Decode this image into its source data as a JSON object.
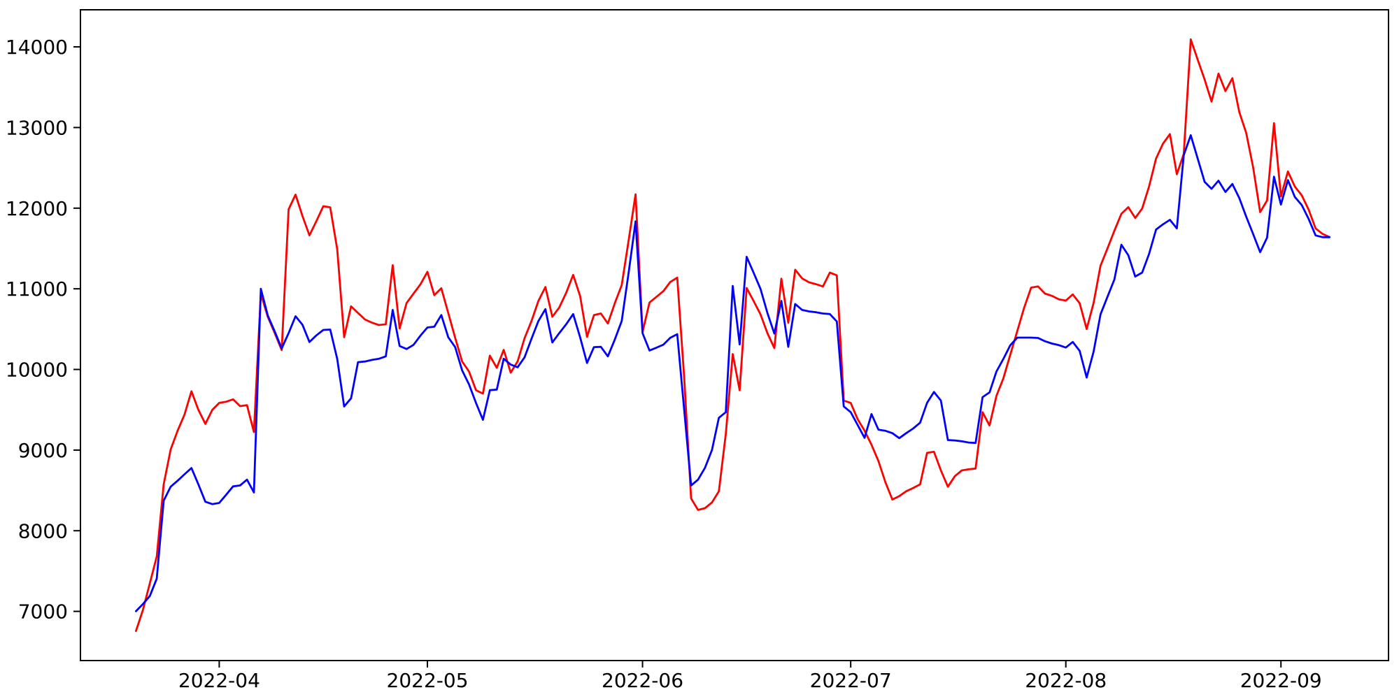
{
  "chart_data": {
    "type": "line",
    "title": "",
    "xlabel": "",
    "ylabel": "",
    "grid": false,
    "legend": null,
    "background_color": "#ffffff",
    "axis_color": "#000000",
    "text_color": "#000000",
    "ylim": [
      6390,
      14460
    ],
    "xlim_days": [
      -8.0,
      180.5
    ],
    "y_ticks": [
      7000,
      8000,
      9000,
      10000,
      11000,
      12000,
      13000,
      14000
    ],
    "y_tick_labels": [
      "7000",
      "8000",
      "9000",
      "10000",
      "11000",
      "12000",
      "13000",
      "14000"
    ],
    "x_tick_labels": [
      "2022-04",
      "2022-05",
      "2022-06",
      "2022-07",
      "2022-08",
      "2022-09"
    ],
    "dates": [
      "2022-03-20",
      "2022-03-21",
      "2022-03-22",
      "2022-03-23",
      "2022-03-24",
      "2022-03-25",
      "2022-03-26",
      "2022-03-27",
      "2022-03-28",
      "2022-03-29",
      "2022-03-30",
      "2022-03-31",
      "2022-04-01",
      "2022-04-02",
      "2022-04-03",
      "2022-04-04",
      "2022-04-05",
      "2022-04-06",
      "2022-04-07",
      "2022-04-08",
      "2022-04-09",
      "2022-04-10",
      "2022-04-11",
      "2022-04-12",
      "2022-04-13",
      "2022-04-14",
      "2022-04-15",
      "2022-04-16",
      "2022-04-17",
      "2022-04-18",
      "2022-04-19",
      "2022-04-20",
      "2022-04-21",
      "2022-04-22",
      "2022-04-23",
      "2022-04-24",
      "2022-04-25",
      "2022-04-26",
      "2022-04-27",
      "2022-04-28",
      "2022-04-29",
      "2022-04-30",
      "2022-05-01",
      "2022-05-02",
      "2022-05-03",
      "2022-05-04",
      "2022-05-05",
      "2022-05-06",
      "2022-05-07",
      "2022-05-08",
      "2022-05-09",
      "2022-05-10",
      "2022-05-11",
      "2022-05-12",
      "2022-05-13",
      "2022-05-14",
      "2022-05-15",
      "2022-05-16",
      "2022-05-17",
      "2022-05-18",
      "2022-05-19",
      "2022-05-20",
      "2022-05-21",
      "2022-05-22",
      "2022-05-23",
      "2022-05-24",
      "2022-05-25",
      "2022-05-26",
      "2022-05-27",
      "2022-05-28",
      "2022-05-29",
      "2022-05-30",
      "2022-05-31",
      "2022-06-01",
      "2022-06-02",
      "2022-06-03",
      "2022-06-04",
      "2022-06-05",
      "2022-06-06",
      "2022-06-07",
      "2022-06-08",
      "2022-06-09",
      "2022-06-10",
      "2022-06-11",
      "2022-06-12",
      "2022-06-13",
      "2022-06-14",
      "2022-06-15",
      "2022-06-16",
      "2022-06-17",
      "2022-06-18",
      "2022-06-19",
      "2022-06-20",
      "2022-06-21",
      "2022-06-22",
      "2022-06-23",
      "2022-06-24",
      "2022-06-25",
      "2022-06-26",
      "2022-06-27",
      "2022-06-28",
      "2022-06-29",
      "2022-06-30",
      "2022-07-01",
      "2022-07-02",
      "2022-07-03",
      "2022-07-04",
      "2022-07-05",
      "2022-07-06",
      "2022-07-07",
      "2022-07-08",
      "2022-07-09",
      "2022-07-10",
      "2022-07-11",
      "2022-07-12",
      "2022-07-13",
      "2022-07-14",
      "2022-07-15",
      "2022-07-16",
      "2022-07-17",
      "2022-07-18",
      "2022-07-19",
      "2022-07-20",
      "2022-07-21",
      "2022-07-22",
      "2022-07-23",
      "2022-07-24",
      "2022-07-25",
      "2022-07-26",
      "2022-07-27",
      "2022-07-28",
      "2022-07-29",
      "2022-07-30",
      "2022-07-31",
      "2022-08-01",
      "2022-08-02",
      "2022-08-03",
      "2022-08-04",
      "2022-08-05",
      "2022-08-06",
      "2022-08-07",
      "2022-08-08",
      "2022-08-09",
      "2022-08-10",
      "2022-08-11",
      "2022-08-12",
      "2022-08-13",
      "2022-08-14",
      "2022-08-15",
      "2022-08-16",
      "2022-08-17",
      "2022-08-18",
      "2022-08-19",
      "2022-08-20",
      "2022-08-21",
      "2022-08-22",
      "2022-08-23",
      "2022-08-24",
      "2022-08-25",
      "2022-08-26",
      "2022-08-27",
      "2022-08-28",
      "2022-08-29",
      "2022-08-30",
      "2022-08-31",
      "2022-09-01",
      "2022-09-02",
      "2022-09-03",
      "2022-09-04",
      "2022-09-05",
      "2022-09-06",
      "2022-09-07",
      "2022-09-08"
    ],
    "series": [
      {
        "name": "red",
        "color": "#ff0000",
        "values": [
          6757,
          7017,
          7348,
          7680,
          8575,
          9008,
          9240,
          9441,
          9729,
          9500,
          9325,
          9498,
          9585,
          9600,
          9629,
          9545,
          9557,
          9224,
          10941,
          10650,
          10450,
          10240,
          11985,
          12168,
          11900,
          11663,
          11840,
          12024,
          12010,
          11490,
          10400,
          10783,
          10700,
          10620,
          10580,
          10551,
          10560,
          11293,
          10508,
          10825,
          10941,
          11056,
          11210,
          10921,
          11007,
          10700,
          10393,
          10100,
          9974,
          9743,
          9700,
          10171,
          10020,
          10243,
          9960,
          10100,
          10387,
          10600,
          10850,
          11022,
          10653,
          10768,
          10950,
          11172,
          10911,
          10405,
          10674,
          10694,
          10570,
          10820,
          11046,
          11600,
          12172,
          10465,
          10830,
          10900,
          10970,
          11085,
          11138,
          9900,
          8400,
          8258,
          8280,
          8350,
          8489,
          9200,
          10191,
          9743,
          11010,
          10850,
          10683,
          10450,
          10265,
          11125,
          10580,
          11236,
          11129,
          11080,
          11057,
          11029,
          11202,
          11167,
          9614,
          9585,
          9383,
          9240,
          9066,
          8864,
          8600,
          8387,
          8430,
          8489,
          8530,
          8575,
          8965,
          8979,
          8748,
          8546,
          8676,
          8748,
          8762,
          8771,
          9470,
          9305,
          9672,
          9890,
          10183,
          10476,
          10768,
          11014,
          11029,
          10941,
          10912,
          10869,
          10854,
          10930,
          10820,
          10500,
          10825,
          11287,
          11500,
          11720,
          11930,
          12012,
          11879,
          11995,
          12269,
          12615,
          12800,
          12918,
          12420,
          12673,
          14093,
          13842,
          13596,
          13322,
          13669,
          13452,
          13611,
          13192,
          12932,
          12500,
          11951,
          12095,
          13054,
          12145,
          12455,
          12268,
          12159,
          11980,
          11749,
          11680,
          11642
        ]
      },
      {
        "name": "blue",
        "color": "#0000ff",
        "values": [
          7002,
          7090,
          7190,
          7406,
          8373,
          8546,
          8620,
          8700,
          8777,
          8575,
          8359,
          8330,
          8345,
          8446,
          8550,
          8561,
          8633,
          8475,
          11000,
          10667,
          10470,
          10260,
          10450,
          10660,
          10552,
          10340,
          10422,
          10490,
          10494,
          10130,
          9541,
          9642,
          10090,
          10098,
          10118,
          10132,
          10162,
          10738,
          10291,
          10253,
          10305,
          10420,
          10520,
          10530,
          10675,
          10400,
          10277,
          9990,
          9815,
          9584,
          9375,
          9743,
          9750,
          10133,
          10060,
          10027,
          10150,
          10380,
          10600,
          10748,
          10335,
          10450,
          10560,
          10687,
          10400,
          10080,
          10277,
          10280,
          10162,
          10370,
          10600,
          11200,
          11836,
          10450,
          10235,
          10270,
          10307,
          10393,
          10437,
          9500,
          8561,
          8633,
          8780,
          9000,
          9400,
          9470,
          11035,
          10310,
          11397,
          11200,
          10999,
          10700,
          10445,
          10850,
          10280,
          10812,
          10738,
          10720,
          10709,
          10694,
          10687,
          10595,
          9542,
          9470,
          9311,
          9152,
          9446,
          9253,
          9239,
          9210,
          9148,
          9210,
          9268,
          9340,
          9585,
          9721,
          9614,
          9125,
          9120,
          9109,
          9094,
          9088,
          9657,
          9715,
          9974,
          10130,
          10300,
          10395,
          10395,
          10395,
          10390,
          10350,
          10321,
          10301,
          10272,
          10341,
          10230,
          9900,
          10220,
          10683,
          10900,
          11115,
          11547,
          11417,
          11152,
          11201,
          11432,
          11735,
          11800,
          11855,
          11749,
          12659,
          12904,
          12615,
          12327,
          12240,
          12341,
          12200,
          12300,
          12125,
          11894,
          11677,
          11454,
          11634,
          12390,
          12045,
          12348,
          12139,
          12038,
          11865,
          11662,
          11640,
          11639
        ]
      }
    ]
  }
}
